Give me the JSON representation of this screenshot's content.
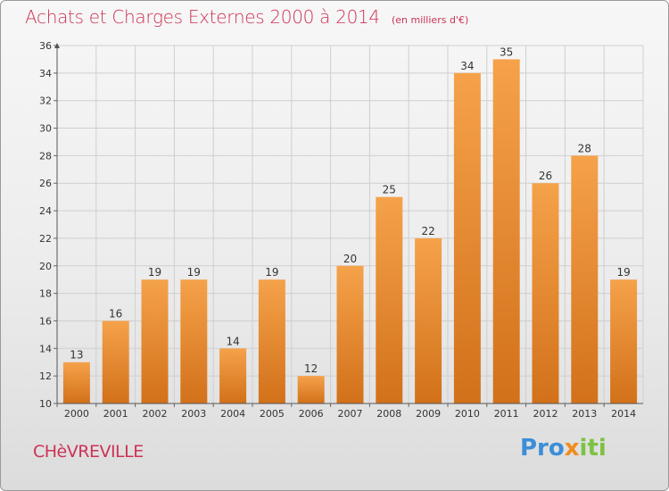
{
  "header": {
    "title": "Achats et Charges Externes 2000 à 2014",
    "subtitle": "(en milliers d'€)"
  },
  "footer": {
    "commune": "CHèVREVILLE",
    "logo_parts": [
      "Pro",
      "x",
      "iti"
    ]
  },
  "colors": {
    "title": "#cc3355",
    "bar_top": "#f5a24a",
    "bar_bottom": "#d2711a",
    "logo_blue": "#3b8ed8",
    "logo_orange": "#f08c1e",
    "logo_green": "#7cc242"
  },
  "chart_data": {
    "type": "bar",
    "title": "Achats et Charges Externes 2000 à 2014",
    "subtitle": "(en milliers d'€)",
    "categories": [
      "2000",
      "2001",
      "2002",
      "2003",
      "2004",
      "2005",
      "2006",
      "2007",
      "2008",
      "2009",
      "2010",
      "2011",
      "2012",
      "2013",
      "2014"
    ],
    "values": [
      13,
      16,
      19,
      19,
      14,
      19,
      12,
      20,
      25,
      22,
      34,
      35,
      26,
      28,
      19
    ],
    "ylim": [
      10,
      36
    ],
    "yticks": [
      10,
      12,
      14,
      16,
      18,
      20,
      22,
      24,
      26,
      28,
      30,
      32,
      34,
      36
    ],
    "grid": true,
    "data_labels": true
  }
}
